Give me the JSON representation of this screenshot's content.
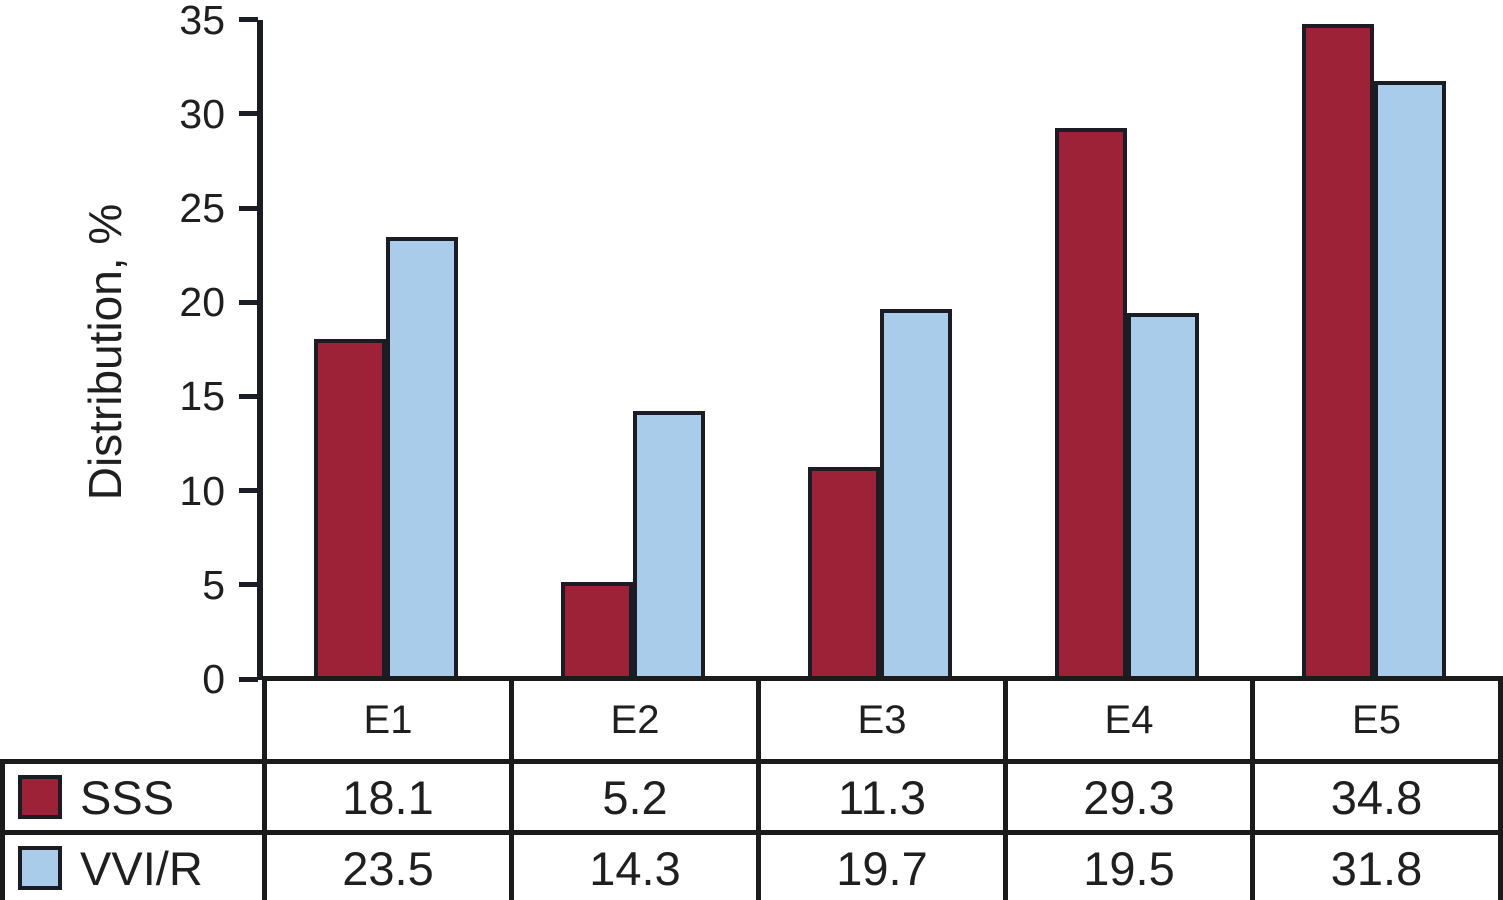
{
  "chart_data": {
    "type": "bar",
    "title": "",
    "ylabel": "Distribution, %",
    "xlabel": "",
    "categories": [
      "E1",
      "E2",
      "E3",
      "E4",
      "E5"
    ],
    "series": [
      {
        "name": "SSS",
        "color": "#9d2137",
        "values": [
          18.1,
          5.2,
          11.3,
          29.3,
          34.8
        ]
      },
      {
        "name": "VVI/R",
        "color": "#a9cceb",
        "values": [
          23.5,
          14.3,
          19.7,
          19.5,
          31.8
        ]
      }
    ],
    "yticks": [
      0,
      5,
      10,
      15,
      20,
      25,
      30,
      35
    ],
    "ylim": [
      0,
      35
    ],
    "grid": false,
    "legend_position": "table-left",
    "colors": {
      "outline": "#1b1c24",
      "table_border": "#1b1b1b",
      "text": "#1f1f1f",
      "background": "#ffffff"
    }
  }
}
